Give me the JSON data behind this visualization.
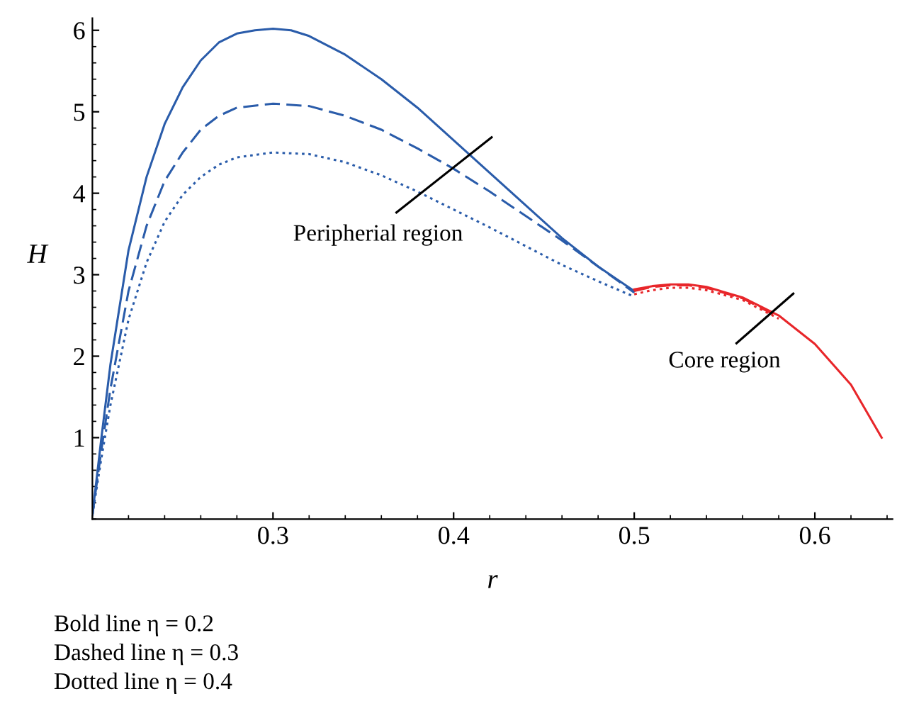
{
  "chart_data": {
    "type": "line",
    "xlabel": "r",
    "ylabel": "H",
    "xlim": [
      0.2,
      0.643
    ],
    "ylim": [
      0,
      6.15
    ],
    "xticks": [
      0.3,
      0.4,
      0.5,
      0.6
    ],
    "yticks": [
      1,
      2,
      3,
      4,
      5,
      6
    ],
    "grid": false,
    "marker": "none",
    "series": [
      {
        "color": "#2a5caa",
        "line_style": "solid",
        "x": [
          0.2,
          0.205,
          0.21,
          0.215,
          0.22,
          0.23,
          0.24,
          0.25,
          0.26,
          0.27,
          0.28,
          0.29,
          0.3,
          0.31,
          0.32,
          0.34,
          0.36,
          0.38,
          0.4,
          0.42,
          0.44,
          0.46,
          0.48,
          0.5
        ],
        "values": [
          0.05,
          1.0,
          1.9,
          2.6,
          3.3,
          4.2,
          4.85,
          5.3,
          5.63,
          5.85,
          5.96,
          6.0,
          6.02,
          6.0,
          5.93,
          5.7,
          5.4,
          5.05,
          4.65,
          4.25,
          3.85,
          3.45,
          3.1,
          2.8
        ]
      },
      {
        "color": "#2a5caa",
        "line_style": "dashed",
        "x": [
          0.2,
          0.205,
          0.21,
          0.22,
          0.23,
          0.24,
          0.25,
          0.26,
          0.27,
          0.28,
          0.3,
          0.32,
          0.34,
          0.36,
          0.38,
          0.4,
          0.42,
          0.44,
          0.46,
          0.48,
          0.5
        ],
        "values": [
          0.05,
          0.85,
          1.6,
          2.8,
          3.6,
          4.15,
          4.5,
          4.78,
          4.95,
          5.05,
          5.1,
          5.07,
          4.95,
          4.78,
          4.55,
          4.3,
          4.02,
          3.72,
          3.42,
          3.1,
          2.78
        ]
      },
      {
        "color": "#2a5caa",
        "line_style": "dotted",
        "x": [
          0.2,
          0.205,
          0.21,
          0.22,
          0.23,
          0.24,
          0.25,
          0.26,
          0.27,
          0.28,
          0.3,
          0.32,
          0.34,
          0.36,
          0.38,
          0.4,
          0.42,
          0.44,
          0.46,
          0.48,
          0.5
        ],
        "values": [
          0.05,
          0.75,
          1.4,
          2.45,
          3.15,
          3.65,
          3.98,
          4.2,
          4.35,
          4.44,
          4.5,
          4.48,
          4.38,
          4.22,
          4.02,
          3.8,
          3.58,
          3.35,
          3.12,
          2.92,
          2.73
        ]
      },
      {
        "color": "#e8262a",
        "line_style": "solid",
        "x": [
          0.5,
          0.51,
          0.52,
          0.53,
          0.54,
          0.56,
          0.58,
          0.6,
          0.62,
          0.637
        ],
        "values": [
          2.82,
          2.86,
          2.88,
          2.88,
          2.85,
          2.72,
          2.5,
          2.15,
          1.65,
          1.0
        ]
      },
      {
        "color": "#e8262a",
        "line_style": "dashed",
        "x": [
          0.5,
          0.51,
          0.52,
          0.53,
          0.54,
          0.56,
          0.58
        ],
        "values": [
          2.8,
          2.85,
          2.87,
          2.87,
          2.84,
          2.71,
          2.48
        ]
      },
      {
        "color": "#e8262a",
        "line_style": "dotted",
        "x": [
          0.5,
          0.51,
          0.52,
          0.53,
          0.54,
          0.56,
          0.58
        ],
        "values": [
          2.76,
          2.81,
          2.84,
          2.84,
          2.81,
          2.69,
          2.46
        ]
      }
    ],
    "annotations": [
      "Peripherial region",
      "Core region",
      "Bold line η = 0.2",
      "Dashed line η = 0.3",
      "Dotted line η = 0.4"
    ]
  }
}
